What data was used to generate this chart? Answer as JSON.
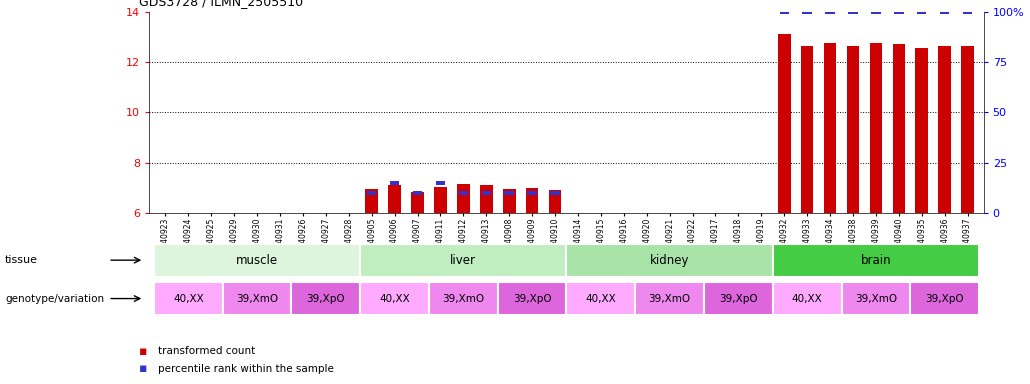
{
  "title": "GDS3728 / ILMN_2505510",
  "samples": [
    "GSM340923",
    "GSM340924",
    "GSM340925",
    "GSM340929",
    "GSM340930",
    "GSM340931",
    "GSM340926",
    "GSM340927",
    "GSM340928",
    "GSM340905",
    "GSM340906",
    "GSM340907",
    "GSM340911",
    "GSM340912",
    "GSM340913",
    "GSM340908",
    "GSM340909",
    "GSM340910",
    "GSM340914",
    "GSM340915",
    "GSM340916",
    "GSM340920",
    "GSM340921",
    "GSM340922",
    "GSM340917",
    "GSM340918",
    "GSM340919",
    "GSM340932",
    "GSM340933",
    "GSM340934",
    "GSM340938",
    "GSM340939",
    "GSM340940",
    "GSM340935",
    "GSM340936",
    "GSM340937"
  ],
  "red_bars": [
    6.0,
    6.0,
    6.0,
    6.0,
    6.0,
    6.0,
    6.0,
    6.0,
    6.0,
    6.95,
    7.1,
    6.85,
    7.05,
    7.15,
    7.1,
    6.95,
    7.0,
    6.9,
    6.0,
    6.0,
    6.0,
    6.0,
    6.0,
    6.0,
    6.0,
    6.0,
    6.0,
    13.1,
    12.65,
    12.75,
    12.65,
    12.75,
    12.7,
    12.55,
    12.65,
    12.65
  ],
  "blue_vals": [
    0,
    0,
    0,
    0,
    0,
    0,
    0,
    0,
    0,
    10,
    15,
    10,
    15,
    10,
    10,
    10,
    10,
    10,
    0,
    0,
    0,
    0,
    0,
    0,
    0,
    0,
    0,
    100,
    100,
    100,
    100,
    100,
    100,
    100,
    100,
    100
  ],
  "tissues": [
    {
      "name": "muscle",
      "start": 0,
      "end": 9,
      "color": "#dcf5dc"
    },
    {
      "name": "liver",
      "start": 9,
      "end": 18,
      "color": "#c0eec0"
    },
    {
      "name": "kidney",
      "start": 18,
      "end": 27,
      "color": "#a8e4a8"
    },
    {
      "name": "brain",
      "start": 27,
      "end": 36,
      "color": "#44cc44"
    }
  ],
  "genotypes": [
    {
      "name": "40,XX",
      "start": 0,
      "end": 3
    },
    {
      "name": "39,XmO",
      "start": 3,
      "end": 6
    },
    {
      "name": "39,XpO",
      "start": 6,
      "end": 9
    },
    {
      "name": "40,XX",
      "start": 9,
      "end": 12
    },
    {
      "name": "39,XmO",
      "start": 12,
      "end": 15
    },
    {
      "name": "39,XpO",
      "start": 15,
      "end": 18
    },
    {
      "name": "40,XX",
      "start": 18,
      "end": 21
    },
    {
      "name": "39,XmO",
      "start": 21,
      "end": 24
    },
    {
      "name": "39,XpO",
      "start": 24,
      "end": 27
    },
    {
      "name": "40,XX",
      "start": 27,
      "end": 30
    },
    {
      "name": "39,XmO",
      "start": 30,
      "end": 33
    },
    {
      "name": "39,XpO",
      "start": 33,
      "end": 36
    }
  ],
  "geno_colors": {
    "40,XX": "#ffaaff",
    "39,XmO": "#ee88ee",
    "39,XpO": "#dd66dd"
  },
  "ylim": [
    6,
    14
  ],
  "yticks": [
    6,
    8,
    10,
    12,
    14
  ],
  "y2ticks": [
    0,
    25,
    50,
    75,
    100
  ],
  "bar_width": 0.55,
  "red_color": "#cc0000",
  "blue_color": "#3333cc",
  "bar_bottom": 6.0
}
